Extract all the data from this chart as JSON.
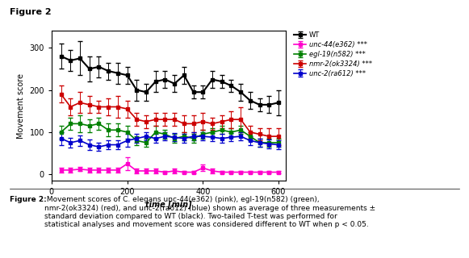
{
  "title": "Figure 2",
  "xlabel": "time [min]",
  "ylabel": "Movement score",
  "xlim": [
    0,
    620
  ],
  "ylim": [
    -15,
    340
  ],
  "yticks": [
    0,
    100,
    200,
    300
  ],
  "xticks": [
    0,
    200,
    400,
    600
  ],
  "background_color": "#ffffff",
  "figure_caption_bold": "Figure 2:",
  "figure_caption_normal": " Movement scores of C. elegans unc-44(e362) (pink), egl-19(n582) (green),\nnmr-2(ok3324) (red), and unc-2(ra612) (blue) shown as average of three measurements ±\nstandard deviation compared to WT (black). Two-tailed T-test was performed for\nstatistical analyses and movement score was considered different to WT when p < 0.05.",
  "series": [
    {
      "label": "WT",
      "color": "#000000",
      "x": [
        25,
        50,
        75,
        100,
        125,
        150,
        175,
        200,
        225,
        250,
        275,
        300,
        325,
        350,
        375,
        400,
        425,
        450,
        475,
        500,
        525,
        550,
        575,
        600
      ],
      "y": [
        280,
        270,
        275,
        250,
        255,
        245,
        240,
        235,
        200,
        195,
        220,
        225,
        215,
        235,
        195,
        195,
        225,
        220,
        210,
        195,
        175,
        165,
        165,
        170
      ],
      "yerr": [
        30,
        25,
        40,
        30,
        25,
        20,
        25,
        20,
        25,
        20,
        25,
        20,
        20,
        20,
        15,
        15,
        20,
        15,
        15,
        20,
        20,
        15,
        20,
        30
      ],
      "marker": "s",
      "markersize": 3,
      "linewidth": 1.5,
      "italic": false
    },
    {
      "label": "unc-44(e362) ***",
      "color": "#ff00cc",
      "x": [
        25,
        50,
        75,
        100,
        125,
        150,
        175,
        200,
        225,
        250,
        275,
        300,
        325,
        350,
        375,
        400,
        425,
        450,
        475,
        500,
        525,
        550,
        575,
        600
      ],
      "y": [
        10,
        10,
        12,
        10,
        10,
        10,
        10,
        25,
        8,
        8,
        8,
        5,
        8,
        5,
        5,
        15,
        8,
        5,
        5,
        5,
        5,
        5,
        5,
        5
      ],
      "yerr": [
        5,
        5,
        5,
        5,
        5,
        5,
        5,
        15,
        5,
        5,
        5,
        3,
        5,
        3,
        3,
        8,
        5,
        3,
        3,
        3,
        3,
        3,
        3,
        3
      ],
      "marker": "s",
      "markersize": 3,
      "linewidth": 1.2,
      "italic": true
    },
    {
      "label": "egl-19(n582) ***",
      "color": "#008000",
      "x": [
        25,
        50,
        75,
        100,
        125,
        150,
        175,
        200,
        225,
        250,
        275,
        300,
        325,
        350,
        375,
        400,
        425,
        450,
        475,
        500,
        525,
        550,
        575,
        600
      ],
      "y": [
        100,
        120,
        120,
        115,
        120,
        105,
        105,
        100,
        80,
        75,
        100,
        95,
        85,
        90,
        85,
        95,
        100,
        105,
        100,
        105,
        90,
        75,
        75,
        75
      ],
      "yerr": [
        15,
        15,
        20,
        15,
        15,
        15,
        15,
        15,
        10,
        10,
        15,
        10,
        10,
        10,
        10,
        10,
        10,
        10,
        10,
        10,
        10,
        10,
        10,
        10
      ],
      "marker": "s",
      "markersize": 3,
      "linewidth": 1.2,
      "italic": true
    },
    {
      "label": "nmr-2(ok3324) ***",
      "color": "#cc0000",
      "x": [
        25,
        50,
        75,
        100,
        125,
        150,
        175,
        200,
        225,
        250,
        275,
        300,
        325,
        350,
        375,
        400,
        425,
        450,
        475,
        500,
        525,
        550,
        575,
        600
      ],
      "y": [
        190,
        160,
        170,
        165,
        160,
        160,
        160,
        155,
        130,
        125,
        130,
        130,
        130,
        120,
        120,
        125,
        120,
        125,
        130,
        130,
        100,
        95,
        90,
        90
      ],
      "yerr": [
        20,
        20,
        25,
        20,
        15,
        20,
        25,
        20,
        15,
        15,
        15,
        15,
        15,
        20,
        20,
        20,
        15,
        15,
        20,
        30,
        15,
        15,
        20,
        20
      ],
      "marker": "s",
      "markersize": 3,
      "linewidth": 1.2,
      "italic": true
    },
    {
      "label": "unc-2(ra612) ***",
      "color": "#0000cc",
      "x": [
        25,
        50,
        75,
        100,
        125,
        150,
        175,
        200,
        225,
        250,
        275,
        300,
        325,
        350,
        375,
        400,
        425,
        450,
        475,
        500,
        525,
        550,
        575,
        600
      ],
      "y": [
        85,
        75,
        80,
        70,
        65,
        70,
        70,
        80,
        85,
        90,
        85,
        90,
        88,
        85,
        90,
        90,
        88,
        85,
        88,
        90,
        80,
        75,
        72,
        70
      ],
      "yerr": [
        15,
        12,
        12,
        12,
        10,
        10,
        10,
        15,
        10,
        10,
        10,
        10,
        10,
        10,
        10,
        10,
        10,
        10,
        10,
        10,
        10,
        10,
        10,
        10
      ],
      "marker": "s",
      "markersize": 3,
      "linewidth": 1.2,
      "italic": true
    }
  ]
}
